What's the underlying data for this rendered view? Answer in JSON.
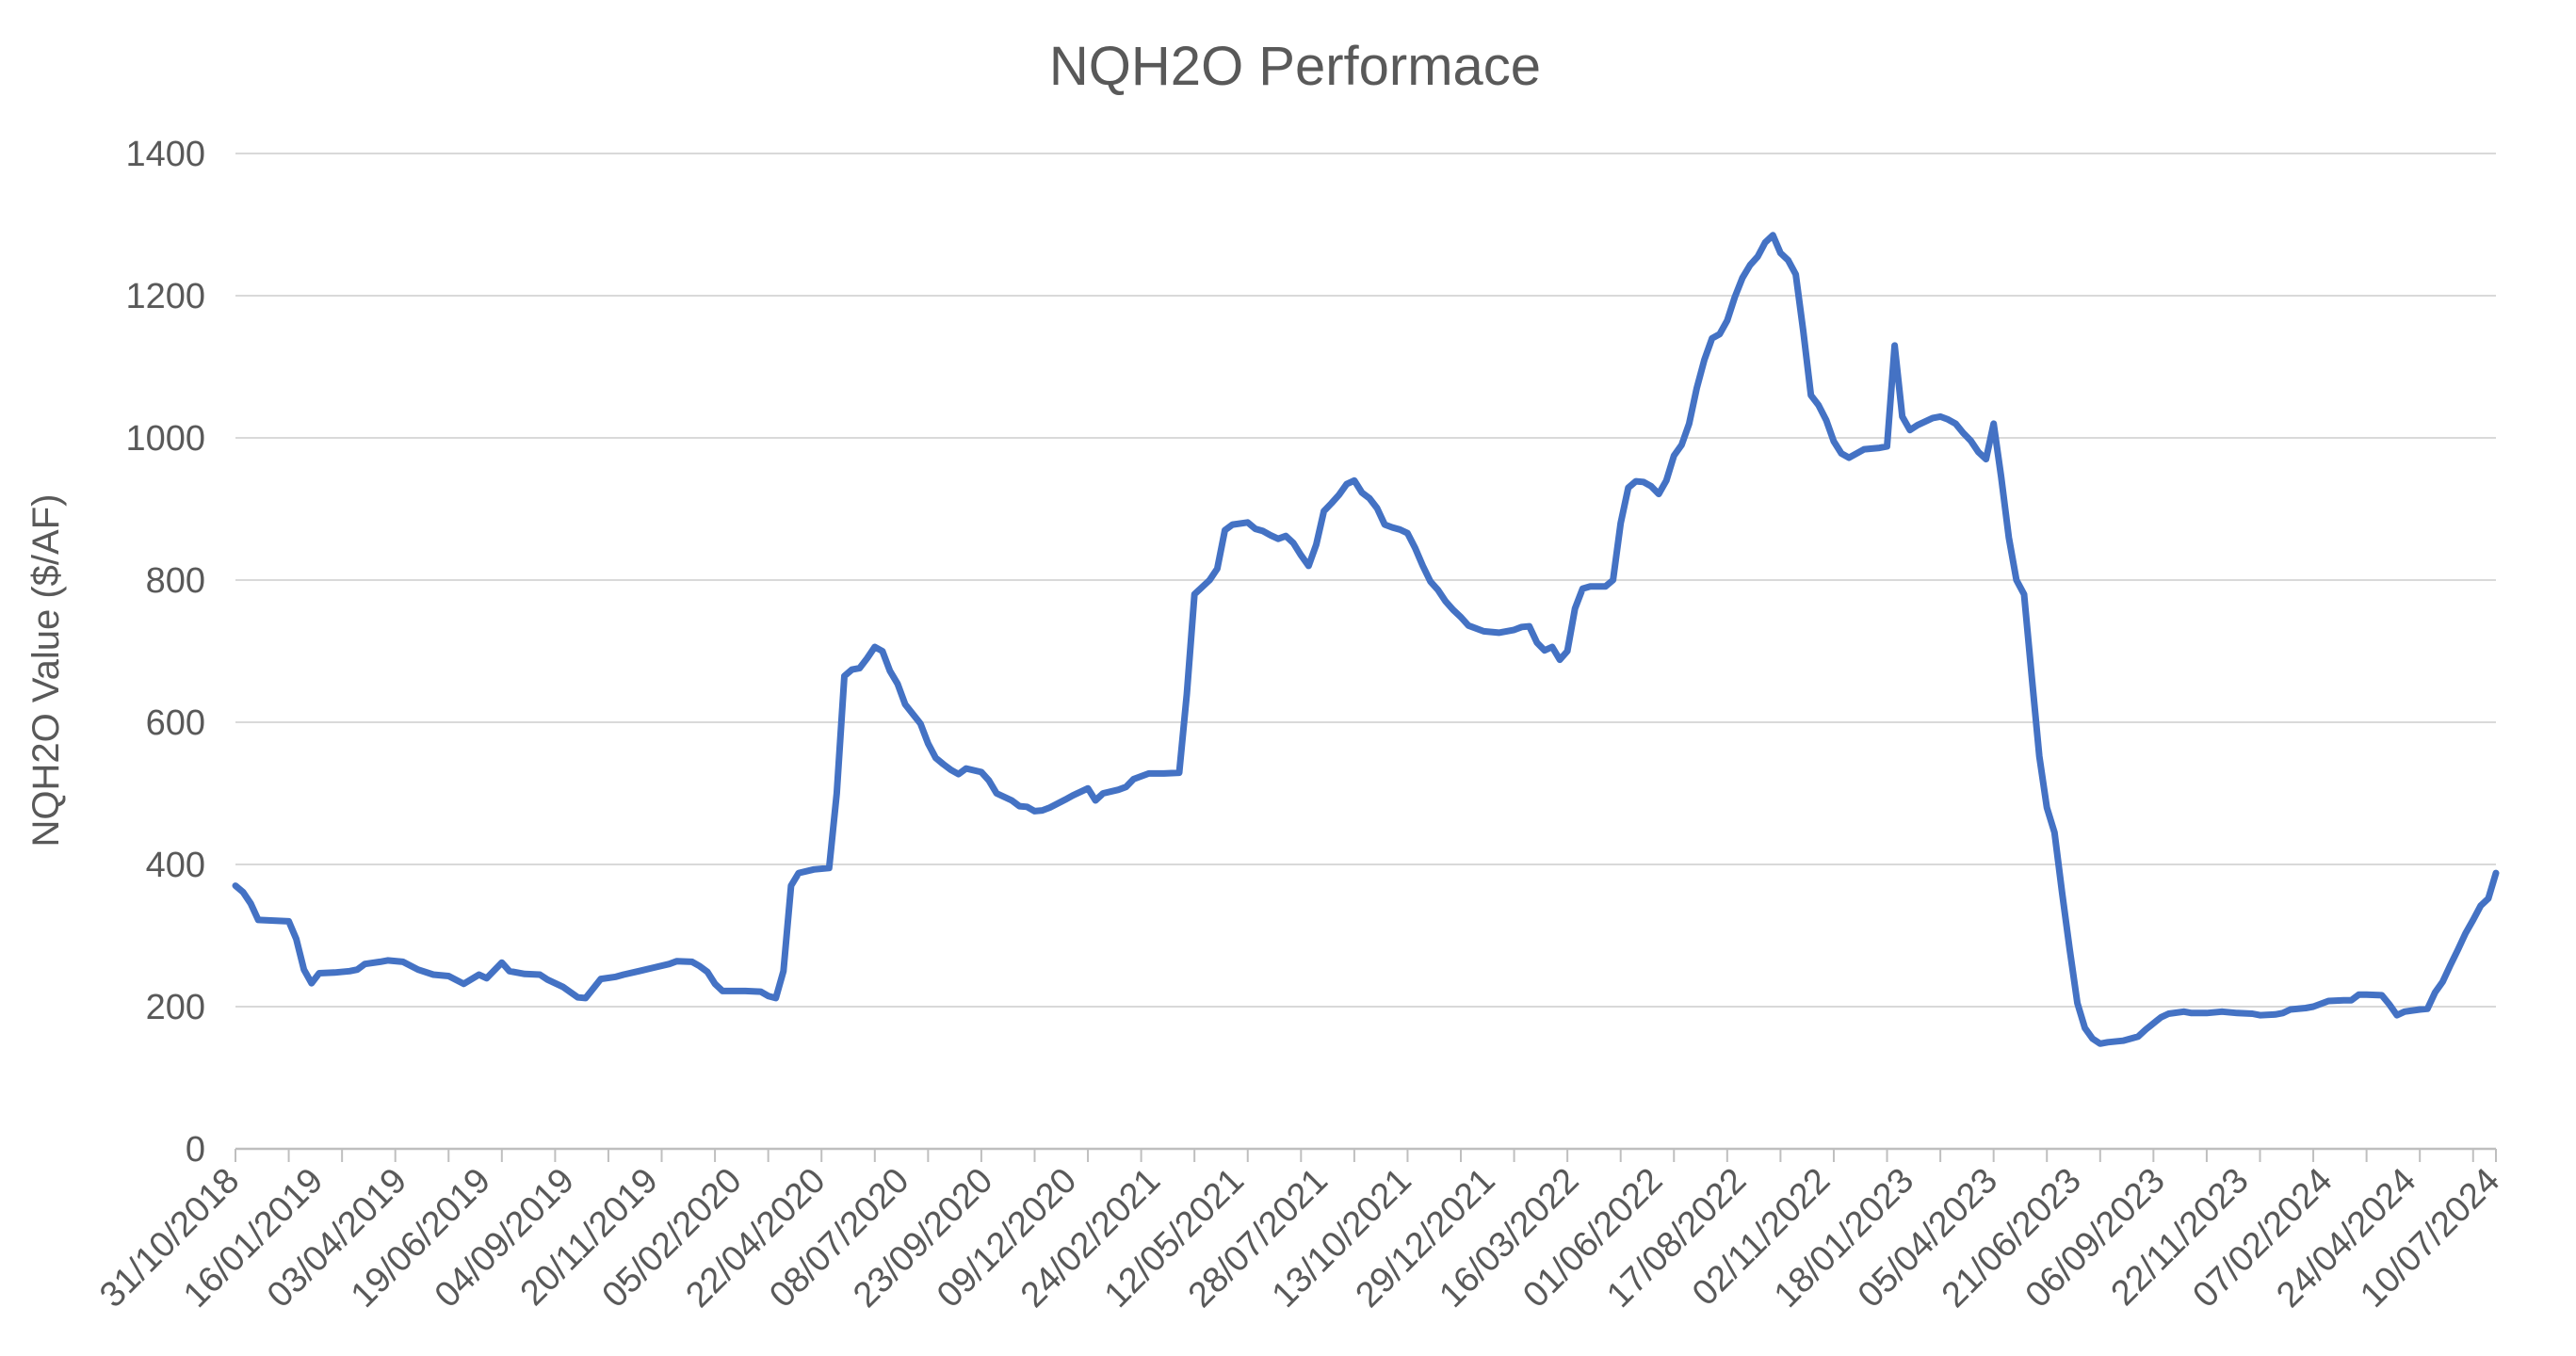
{
  "title": "NQH2O Performace",
  "colors": {
    "line": "#4472C4",
    "gridline": "#D9D9D9",
    "axis_line": "#BFBFBF",
    "tick": "#BFBFBF",
    "label_text": "#595959",
    "title_text": "#595959",
    "background": "#FFFFFF"
  },
  "chart_data": {
    "type": "line",
    "title": "NQH2O Performace",
    "xlabel": "",
    "ylabel": "NQH2O Value ($/AF)",
    "ylim": [
      0,
      1400
    ],
    "ytick_interval": 200,
    "y_tick_labels": [
      "0",
      "200",
      "400",
      "600",
      "800",
      "1000",
      "1200",
      "1400"
    ],
    "grid": true,
    "legend_position": "none",
    "x_unit": "weeks since 31/10/2018",
    "x_total_weeks": 297,
    "x_label_interval_weeks": 11,
    "x_minor_tick_interval_weeks": 7,
    "x_tick_labels": [
      "31/10/2018",
      "16/01/2019",
      "03/04/2019",
      "19/06/2019",
      "04/09/2019",
      "20/11/2019",
      "05/02/2020",
      "22/04/2020",
      "08/07/2020",
      "23/09/2020",
      "09/12/2020",
      "24/02/2021",
      "12/05/2021",
      "28/07/2021",
      "13/10/2021",
      "29/12/2021",
      "16/03/2022",
      "01/06/2022",
      "17/08/2022",
      "02/11/2022",
      "18/01/2023",
      "05/04/2023",
      "21/06/2023",
      "06/09/2023",
      "22/11/2023",
      "07/02/2024",
      "24/04/2024",
      "10/07/2024"
    ],
    "series": [
      {
        "name": "NQH2O Value",
        "color": "#4472C4",
        "points": [
          [
            0,
            370
          ],
          [
            1,
            361
          ],
          [
            2,
            345
          ],
          [
            3,
            322
          ],
          [
            5,
            321
          ],
          [
            7,
            320
          ],
          [
            8,
            295
          ],
          [
            9,
            252
          ],
          [
            10,
            233
          ],
          [
            11,
            247
          ],
          [
            13,
            248
          ],
          [
            15,
            250
          ],
          [
            16,
            252
          ],
          [
            17,
            260
          ],
          [
            19,
            263
          ],
          [
            20,
            265
          ],
          [
            22,
            263
          ],
          [
            24,
            252
          ],
          [
            26,
            245
          ],
          [
            28,
            243
          ],
          [
            30,
            232
          ],
          [
            32,
            245
          ],
          [
            33,
            240
          ],
          [
            35,
            262
          ],
          [
            36,
            250
          ],
          [
            38,
            246
          ],
          [
            40,
            245
          ],
          [
            41,
            238
          ],
          [
            43,
            228
          ],
          [
            45,
            213
          ],
          [
            46,
            212
          ],
          [
            48,
            239
          ],
          [
            50,
            242
          ],
          [
            51,
            245
          ],
          [
            53,
            250
          ],
          [
            55,
            255
          ],
          [
            57,
            260
          ],
          [
            58,
            264
          ],
          [
            60,
            263
          ],
          [
            61,
            257
          ],
          [
            62,
            249
          ],
          [
            63,
            232
          ],
          [
            64,
            222
          ],
          [
            67,
            222
          ],
          [
            69,
            221
          ],
          [
            70,
            215
          ],
          [
            71,
            212
          ],
          [
            72,
            250
          ],
          [
            73,
            370
          ],
          [
            74,
            388
          ],
          [
            76,
            393
          ],
          [
            78,
            395
          ],
          [
            79,
            500
          ],
          [
            80,
            665
          ],
          [
            81,
            674
          ],
          [
            82,
            676
          ],
          [
            83,
            690
          ],
          [
            84,
            706
          ],
          [
            85,
            700
          ],
          [
            86,
            672
          ],
          [
            87,
            654
          ],
          [
            88,
            625
          ],
          [
            90,
            598
          ],
          [
            91,
            570
          ],
          [
            92,
            550
          ],
          [
            93,
            541
          ],
          [
            94,
            533
          ],
          [
            95,
            527
          ],
          [
            96,
            535
          ],
          [
            98,
            530
          ],
          [
            99,
            518
          ],
          [
            100,
            500
          ],
          [
            102,
            490
          ],
          [
            103,
            482
          ],
          [
            104,
            481
          ],
          [
            105,
            475
          ],
          [
            106,
            476
          ],
          [
            107,
            480
          ],
          [
            109,
            491
          ],
          [
            110,
            497
          ],
          [
            112,
            507
          ],
          [
            113,
            490
          ],
          [
            114,
            500
          ],
          [
            116,
            505
          ],
          [
            117,
            509
          ],
          [
            118,
            520
          ],
          [
            120,
            528
          ],
          [
            122,
            528
          ],
          [
            124,
            529
          ],
          [
            125,
            640
          ],
          [
            126,
            780
          ],
          [
            127,
            790
          ],
          [
            128,
            800
          ],
          [
            129,
            816
          ],
          [
            130,
            870
          ],
          [
            131,
            878
          ],
          [
            133,
            881
          ],
          [
            134,
            872
          ],
          [
            135,
            869
          ],
          [
            136,
            863
          ],
          [
            137,
            858
          ],
          [
            138,
            862
          ],
          [
            139,
            852
          ],
          [
            140,
            835
          ],
          [
            141,
            820
          ],
          [
            142,
            850
          ],
          [
            143,
            897
          ],
          [
            144,
            908
          ],
          [
            145,
            920
          ],
          [
            146,
            935
          ],
          [
            147,
            940
          ],
          [
            148,
            923
          ],
          [
            149,
            915
          ],
          [
            150,
            901
          ],
          [
            151,
            878
          ],
          [
            152,
            874
          ],
          [
            153,
            871
          ],
          [
            154,
            866
          ],
          [
            155,
            845
          ],
          [
            156,
            820
          ],
          [
            157,
            798
          ],
          [
            158,
            786
          ],
          [
            159,
            770
          ],
          [
            160,
            758
          ],
          [
            161,
            748
          ],
          [
            162,
            736
          ],
          [
            164,
            728
          ],
          [
            166,
            726
          ],
          [
            168,
            730
          ],
          [
            169,
            734
          ],
          [
            170,
            735
          ],
          [
            171,
            712
          ],
          [
            172,
            701
          ],
          [
            173,
            706
          ],
          [
            174,
            688
          ],
          [
            175,
            700
          ],
          [
            176,
            760
          ],
          [
            177,
            788
          ],
          [
            178,
            791
          ],
          [
            180,
            791
          ],
          [
            181,
            800
          ],
          [
            182,
            880
          ],
          [
            183,
            930
          ],
          [
            184,
            939
          ],
          [
            185,
            938
          ],
          [
            186,
            932
          ],
          [
            187,
            921
          ],
          [
            188,
            940
          ],
          [
            189,
            975
          ],
          [
            190,
            990
          ],
          [
            191,
            1020
          ],
          [
            192,
            1070
          ],
          [
            193,
            1110
          ],
          [
            194,
            1140
          ],
          [
            195,
            1146
          ],
          [
            196,
            1165
          ],
          [
            197,
            1198
          ],
          [
            198,
            1225
          ],
          [
            199,
            1243
          ],
          [
            200,
            1255
          ],
          [
            201,
            1275
          ],
          [
            202,
            1285
          ],
          [
            203,
            1260
          ],
          [
            204,
            1250
          ],
          [
            205,
            1230
          ],
          [
            206,
            1150
          ],
          [
            207,
            1060
          ],
          [
            208,
            1046
          ],
          [
            209,
            1025
          ],
          [
            210,
            995
          ],
          [
            211,
            978
          ],
          [
            212,
            972
          ],
          [
            213,
            978
          ],
          [
            214,
            984
          ],
          [
            216,
            986
          ],
          [
            217,
            988
          ],
          [
            218,
            1130
          ],
          [
            219,
            1030
          ],
          [
            220,
            1011
          ],
          [
            221,
            1018
          ],
          [
            223,
            1028
          ],
          [
            224,
            1030
          ],
          [
            225,
            1026
          ],
          [
            226,
            1020
          ],
          [
            227,
            1007
          ],
          [
            228,
            996
          ],
          [
            229,
            980
          ],
          [
            230,
            970
          ],
          [
            231,
            1020
          ],
          [
            232,
            945
          ],
          [
            233,
            860
          ],
          [
            234,
            800
          ],
          [
            235,
            780
          ],
          [
            236,
            665
          ],
          [
            237,
            552
          ],
          [
            238,
            480
          ],
          [
            239,
            445
          ],
          [
            240,
            360
          ],
          [
            241,
            280
          ],
          [
            242,
            205
          ],
          [
            243,
            170
          ],
          [
            244,
            155
          ],
          [
            245,
            148
          ],
          [
            246,
            150
          ],
          [
            248,
            152
          ],
          [
            250,
            158
          ],
          [
            251,
            168
          ],
          [
            253,
            185
          ],
          [
            254,
            190
          ],
          [
            256,
            193
          ],
          [
            257,
            191
          ],
          [
            259,
            191
          ],
          [
            261,
            193
          ],
          [
            263,
            191
          ],
          [
            265,
            190
          ],
          [
            266,
            188
          ],
          [
            268,
            189
          ],
          [
            269,
            191
          ],
          [
            270,
            196
          ],
          [
            272,
            198
          ],
          [
            273,
            200
          ],
          [
            275,
            208
          ],
          [
            277,
            209
          ],
          [
            278,
            209
          ],
          [
            279,
            217
          ],
          [
            280,
            217
          ],
          [
            282,
            216
          ],
          [
            283,
            203
          ],
          [
            284,
            188
          ],
          [
            285,
            193
          ],
          [
            287,
            196
          ],
          [
            288,
            197
          ],
          [
            289,
            220
          ],
          [
            290,
            235
          ],
          [
            291,
            258
          ],
          [
            292,
            280
          ],
          [
            293,
            303
          ],
          [
            294,
            322
          ],
          [
            295,
            342
          ],
          [
            296,
            352
          ],
          [
            297,
            388
          ]
        ]
      }
    ]
  }
}
